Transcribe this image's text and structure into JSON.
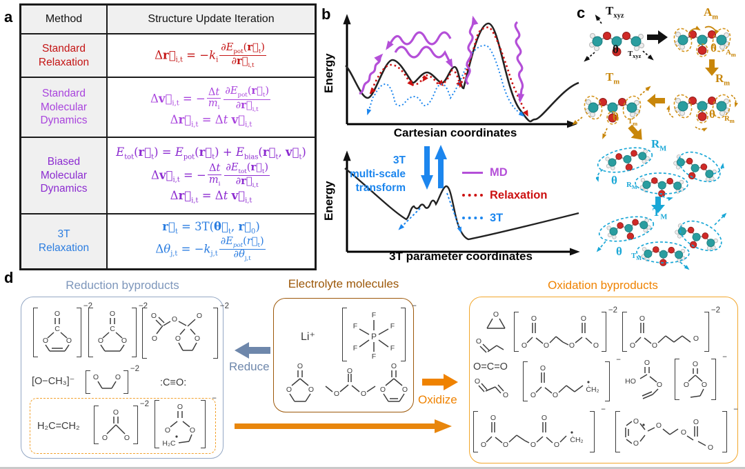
{
  "figure_letters": {
    "a": "a",
    "b": "b",
    "c": "c",
    "d": "d"
  },
  "table": {
    "headers": [
      "Method",
      "Structure Update Iteration"
    ],
    "rows": [
      {
        "method_html": "Standard<br>Relaxation",
        "color": "#c41414",
        "eq1": "Δ<b>r⃗</b><sub>i,t</sub> = −<i>k</i><sub>i</sub><span class='fr'><span class='fn'>∂<i>E</i><sub>pot</sub>(<b>r⃗</b><sub>t</sub>)</span><span class='fd'>∂<b>r⃗</b><sub>i,t</sub></span></span>"
      },
      {
        "method_html": "Standard<br>Molecular<br>Dynamics",
        "color": "#a944dd",
        "eq1": "Δ<b>v⃗</b><sub>i,t</sub> = −<span class='fr'><span class='fn'>Δ<i>t</i></span><span class='fd'><i>m</i><sub>i</sub></span></span><span class='fr'><span class='fn'>∂<i>E</i><sub>pot</sub>(<b>r⃗</b><sub>t</sub>)</span><span class='fd'>∂<b>r⃗</b><sub>i,t</sub></span></span>",
        "eq2": "Δ<b>r⃗</b><sub>i,t</sub> = Δ<i>t</i> <b>v⃗</b><sub>i,t</sub>"
      },
      {
        "method_html": "Biased<br>Molecular<br>Dynamics",
        "color": "#8c2bd0",
        "eq1": "<i>E</i><sub>tot</sub>(<b>r⃗</b><sub>t</sub>) = <i>E</i><sub>pot</sub>(<b>r⃗</b><sub>t</sub>) + <i>E</i><sub>bias</sub>(<b>r⃗</b><sub>t</sub>, <b>v⃗</b><sub>t</sub>)",
        "eq2": "Δ<b>v⃗</b><sub>i,t</sub> = −<span class='fr'><span class='fn'>Δ<i>t</i></span><span class='fd'><i>m</i><sub>i</sub></span></span><span class='fr'><span class='fn'>∂<i>E</i><sub>tot</sub>(<b>r⃗</b><sub>t</sub>)</span><span class='fd'>∂<b>r⃗</b><sub>i,t</sub></span></span>",
        "eq3": "Δ<b>r⃗</b><sub>i,t</sub> = Δ<i>t</i> <b>v⃗</b><sub>i,t</sub>"
      },
      {
        "method_html": "3T<br>Relaxation",
        "color": "#2b7de0",
        "eq1": "<b>r⃗</b><sub>t</sub> = 3T(<b>θ⃗</b><sub>t</sub>, <b>r⃗</b><sub>0</sub>)",
        "eq2": "Δ<i>θ</i><sub>j,t</sub> = −<i>k</i><sub>j,t</sub><span class='fr'><span class='fn'>∂<i>E<sub>pot</sub></i>(<i>r⃗</i><sub>t</sub>)</span><span class='fd'>∂<i>θ</i><sub>j,t</sub></span></span>"
      }
    ]
  },
  "panel_b": {
    "ylabel": "Energy",
    "top_xlabel": "Cartesian coordinates",
    "bottom_xlabel": "3T parameter coordinates",
    "transform_html": "3T<br>multi-scale<br>transform",
    "legend": [
      {
        "label": "MD",
        "color": "#b44fd8",
        "style": "solid"
      },
      {
        "label": "Relaxation",
        "color": "#cc1111",
        "style": "dotted"
      },
      {
        "label": "3T",
        "color": "#1c86ee",
        "style": "dotted"
      }
    ]
  },
  "panel_c": {
    "orange": "#c8860a",
    "cyan": "#19a7d6",
    "labels_html": {
      "txyz": "T<sub>xyz</sub>",
      "theta_txyz": "<b>θ⃗</b><sub>T<sub>xyz</sub></sub>",
      "am": "A<sub>m</sub>",
      "theta_am": "<b>θ⃗</b><sub>A<sub>m</sub></sub>",
      "rm": "R<sub>m</sub>",
      "theta_rm": "<b>θ⃗</b><sub>R<sub>m</sub></sub>",
      "tm": "T<sub>m</sub>",
      "theta_tm": "<b>θ⃗</b><sub>T<sub>m</sub></sub>",
      "rM": "R<sub>M</sub>",
      "theta_rM": "<b>θ⃗</b><sub>R<sub>M</sub></sub>",
      "tM": "T<sub>M</sub>",
      "theta_tM": "<b>θ⃗</b><sub>T<sub>M</sub></sub>"
    }
  },
  "panel_d": {
    "reduce_label": "Reduce",
    "oxidize_label": "Oxidize",
    "reduction": {
      "title": "Reduction byproducts",
      "title_color": "#7d96bb",
      "border_color": "#93a7c4",
      "methoxide": "[O−CH₃]⁻",
      "carbon_monoxide": ":C≡O:",
      "ethylene": "H₂C=CH₂",
      "h2c_label": "H₂C",
      "charges": {
        "vc": "−2",
        "ec": "−2",
        "spiro": "−2",
        "dioxolate": "−2",
        "carbonate": "−2",
        "radical_ring": "−"
      }
    },
    "electrolyte": {
      "title": "Electrolyte molecules",
      "title_color": "#9c5708",
      "border_color": "#9c5708",
      "lithium": "Li⁺",
      "pf6_charge": "−"
    },
    "oxidation": {
      "title": "Oxidation byproducts",
      "title_color": "#ef8200",
      "border_color": "#f2a62a",
      "co2": "O=C=O",
      "radical_ch2": "ĊH₂",
      "ho": "HO",
      "charges": {
        "dicarbonate": "−2",
        "carbonate_chain": "−2",
        "radical_chain": "−",
        "ec_anion": "−",
        "long_radical": "−",
        "dioxolanyl_chain": "−"
      }
    }
  }
}
